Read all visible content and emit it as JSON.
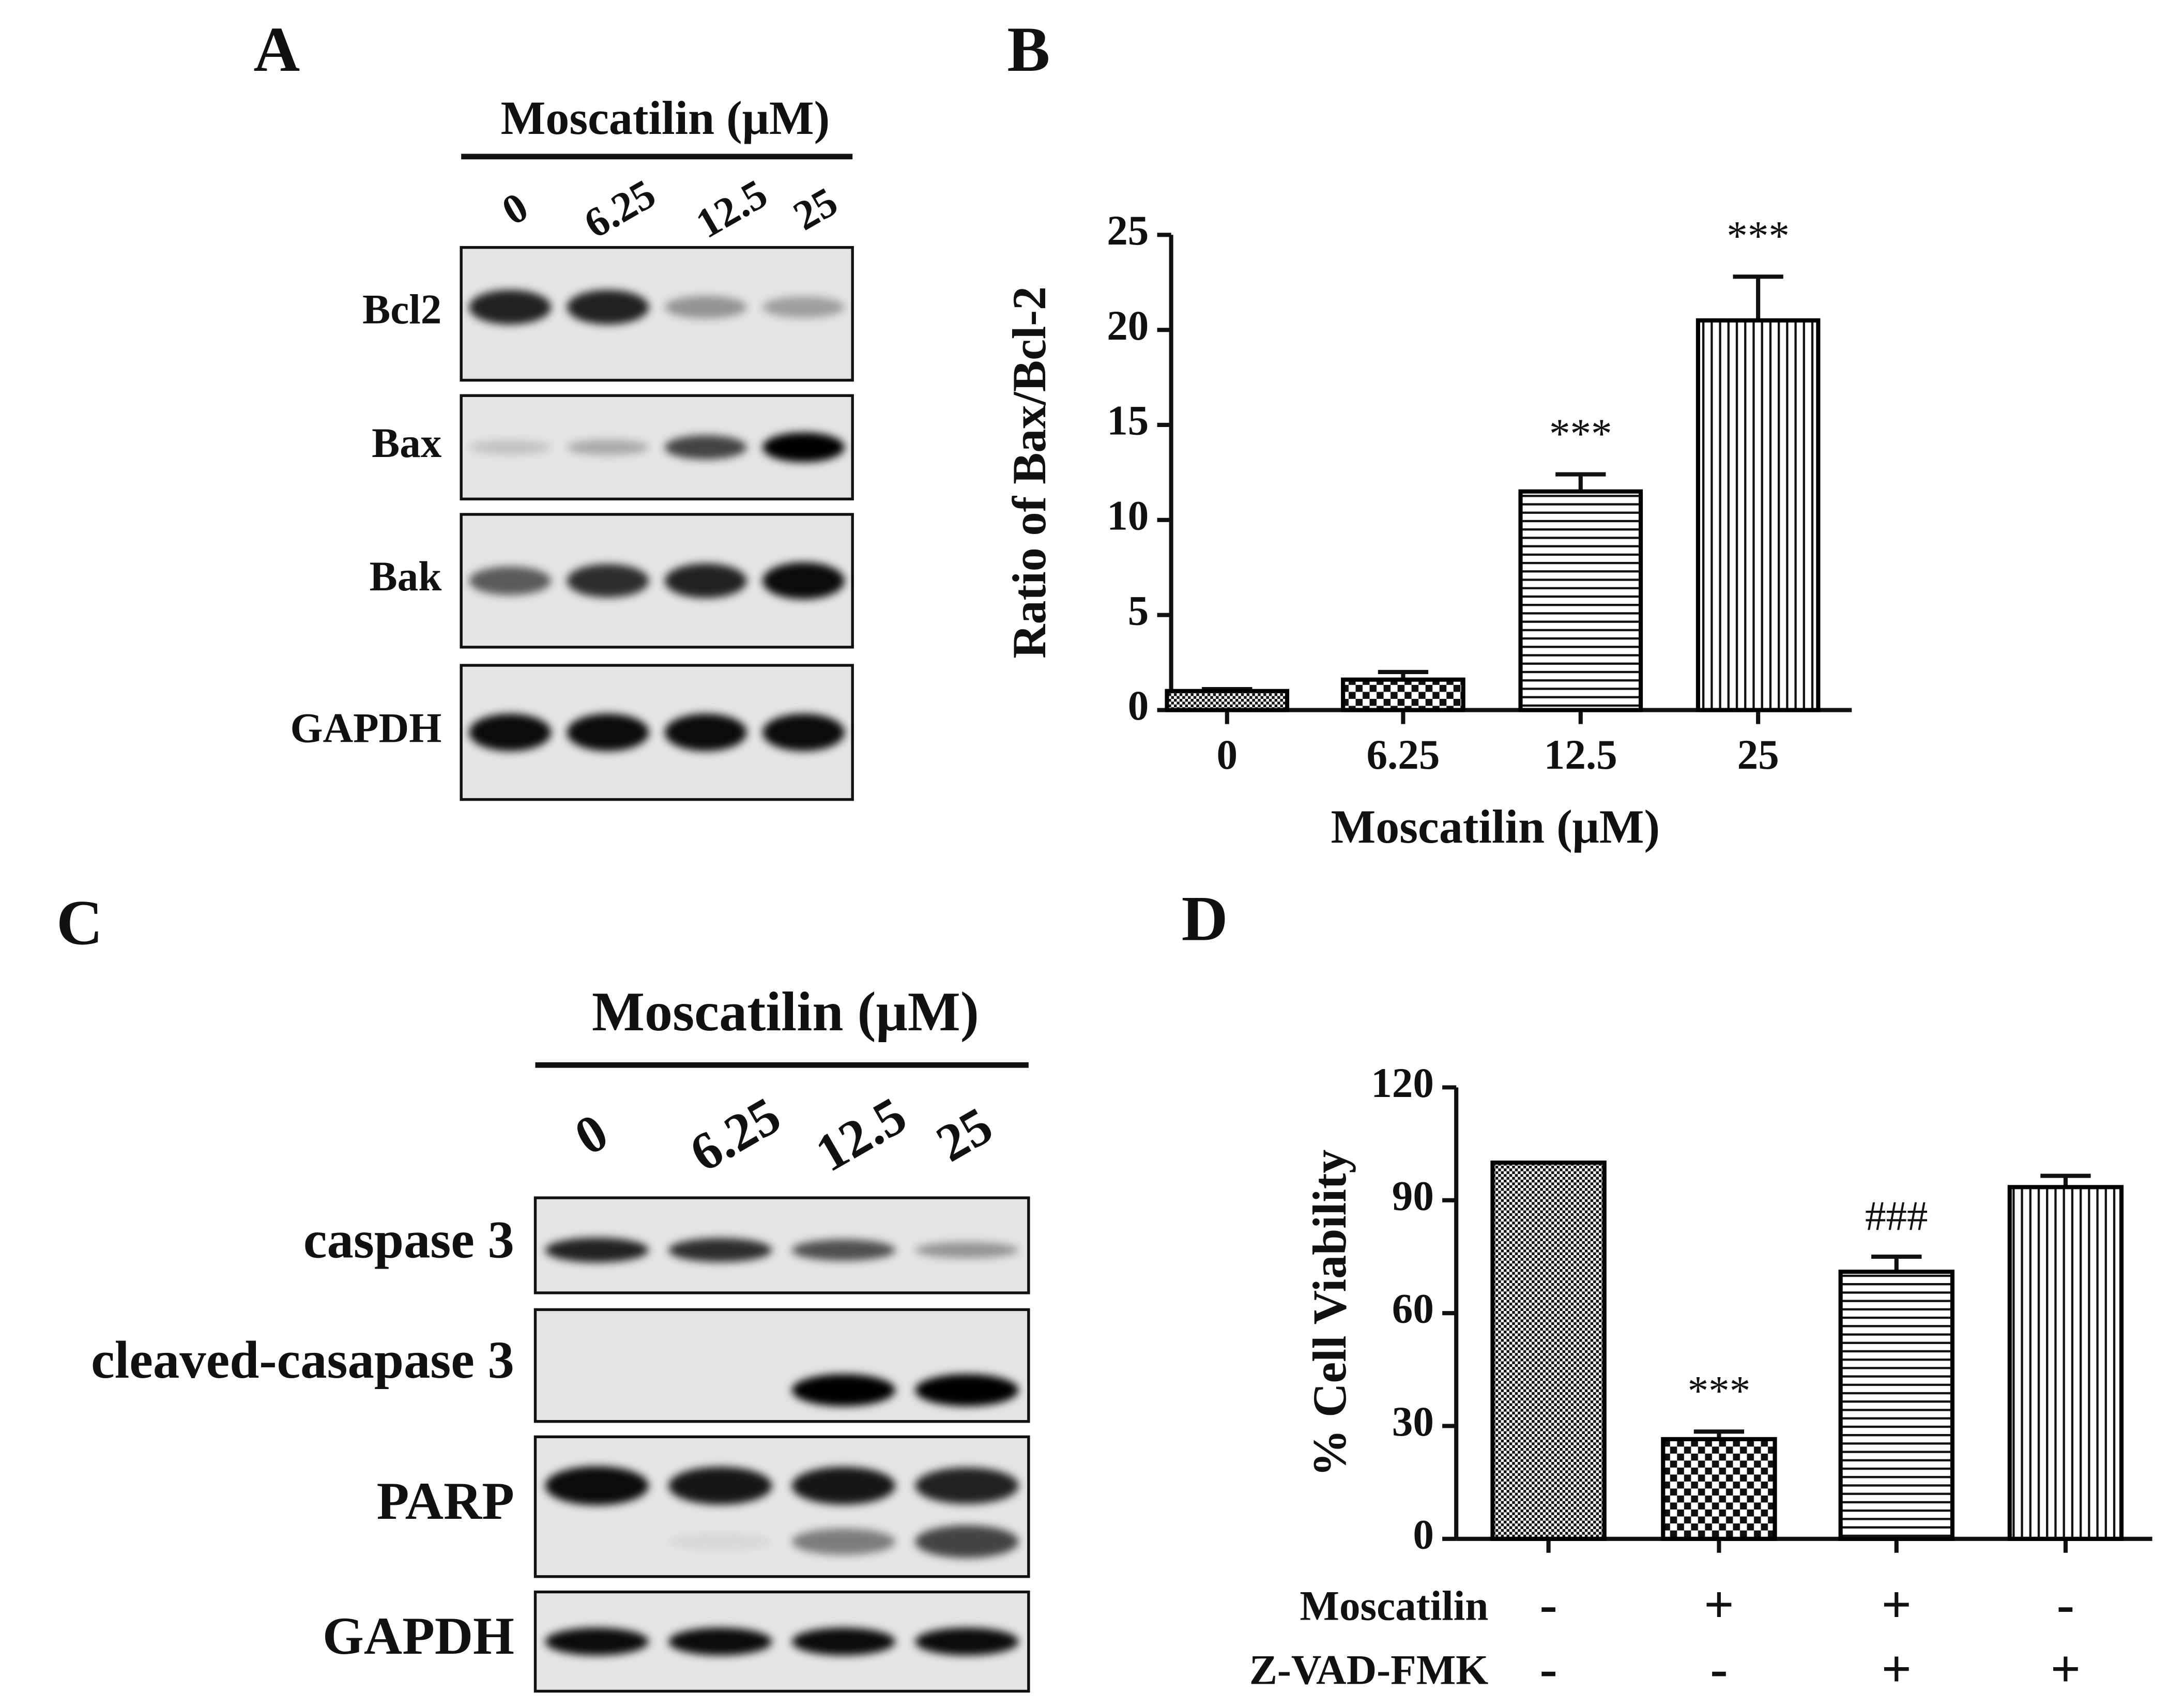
{
  "panel_labels": [
    "A",
    "B",
    "C",
    "D"
  ],
  "blot_a": {
    "header": "Moscatilin (μM)",
    "lanes": [
      "0",
      "6.25",
      "12.5",
      "25"
    ],
    "rows": [
      "Bcl2",
      "Bax",
      "Bak",
      "GAPDH"
    ]
  },
  "blot_c": {
    "header": "Moscatilin (μM)",
    "lanes": [
      "0",
      "6.25",
      "12.5",
      "25"
    ],
    "rows": [
      "caspase 3",
      "cleaved-casapase 3",
      "PARP",
      "GAPDH"
    ]
  },
  "chart_data": [
    {
      "type": "bar",
      "y_label": "Ratio of Bax/Bcl-2",
      "x_label": "Moscatilin (μM)",
      "categories": [
        "0",
        "6.25",
        "12.5",
        "25"
      ],
      "values": [
        1,
        1.6,
        11.5,
        20.5
      ],
      "errors": [
        0.1,
        0.4,
        0.9,
        2.3
      ],
      "annotations": [
        null,
        null,
        "***",
        "***"
      ],
      "patterns": [
        "fine-checker",
        "coarse-checker",
        "horizontal-lines",
        "vertical-lines"
      ],
      "color": "#000000",
      "ylim": [
        0,
        25
      ],
      "yticks": [
        0,
        5,
        10,
        15,
        20,
        25
      ]
    },
    {
      "type": "bar",
      "y_label": "% Cell Viability",
      "conditions": [
        {
          "name": "Moscatilin",
          "values": [
            "-",
            "+",
            "+",
            "-"
          ]
        },
        {
          "name": "Z-VAD-FMK",
          "values": [
            "-",
            "-",
            "+",
            "+"
          ]
        }
      ],
      "values": [
        100,
        26.5,
        71,
        93.5
      ],
      "errors": [
        0,
        2,
        4,
        3
      ],
      "annotations": [
        null,
        "***",
        "###",
        null
      ],
      "patterns": [
        "fine-checker",
        "coarse-checker",
        "horizontal-lines",
        "vertical-lines"
      ],
      "color": "#000000",
      "ylim": [
        0,
        120
      ],
      "yticks": [
        0,
        30,
        60,
        90,
        120
      ]
    }
  ]
}
